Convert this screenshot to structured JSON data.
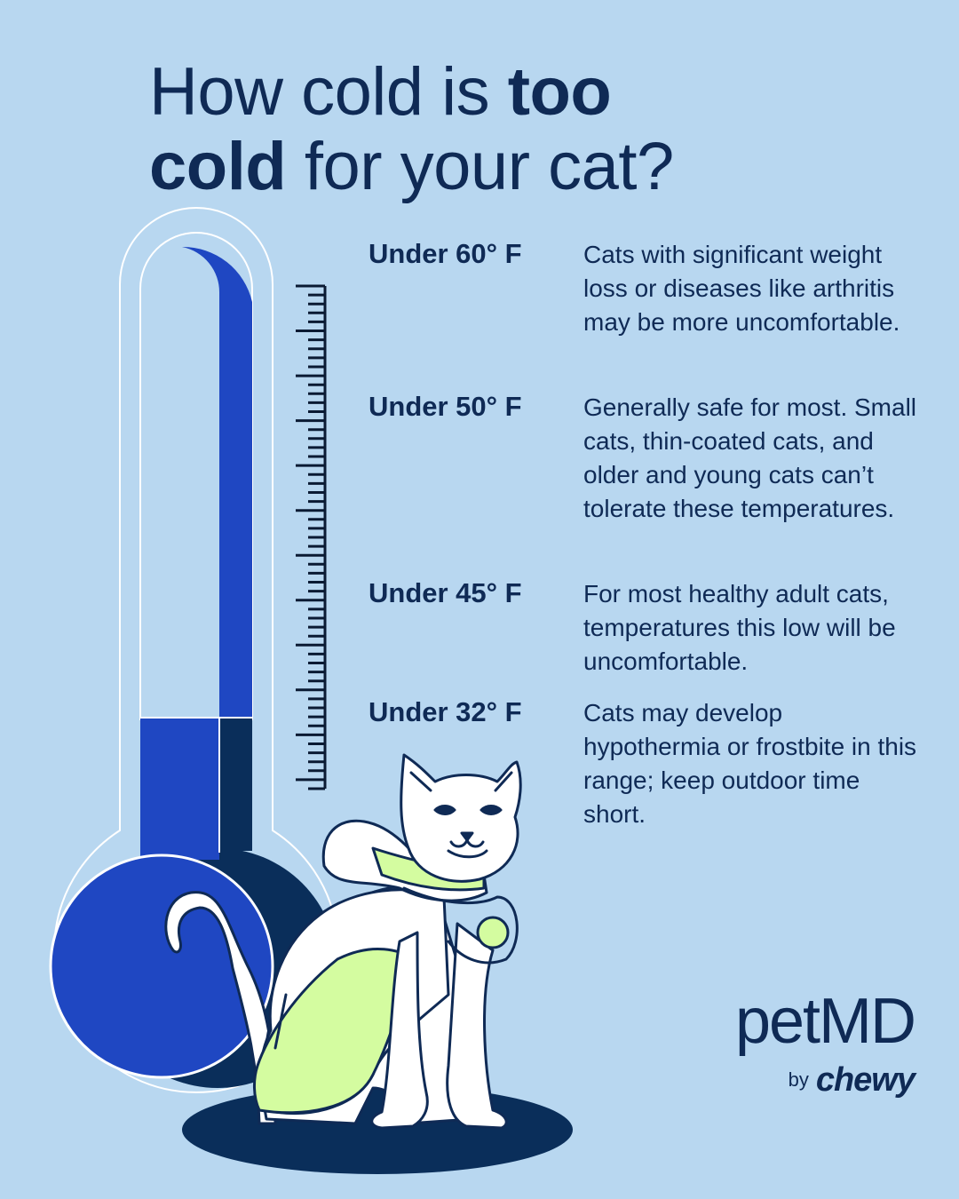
{
  "title": {
    "part1": "How cold is ",
    "bold1": "too",
    "bold2": "cold",
    "part2": " for your cat?"
  },
  "rows": [
    {
      "temp": "Under 60° F",
      "desc": "Cats with significant weight loss or diseases like arthritis may be more uncomfortable."
    },
    {
      "temp": "Under 50° F",
      "desc": "Generally safe for most. Small cats, thin-coated cats, and older and young cats can’t tolerate these temperatures."
    },
    {
      "temp": "Under 45° F",
      "desc": "For most healthy adult cats, temperatures this low will be uncomfortable."
    },
    {
      "temp": "Under 32° F",
      "desc": "Cats may develop hypothermia or frostbite in this range; keep outdoor time short."
    }
  ],
  "logo": {
    "brand": "petMD",
    "by": "by",
    "chewy": "chewy"
  },
  "colors": {
    "background": "#b8d7f0",
    "navy": "#0f2a55",
    "blue": "#1f47c2",
    "lime": "#d4fca0"
  }
}
